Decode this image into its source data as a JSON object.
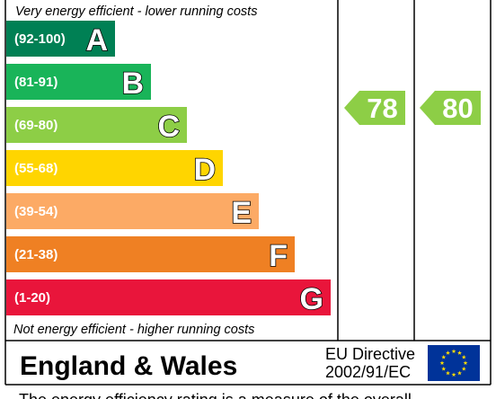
{
  "chart_data": {
    "type": "bar",
    "top_caption": "Very energy efficient - lower running costs",
    "bottom_caption": "Not energy efficient - higher running costs",
    "bands": [
      {
        "letter": "A",
        "range": "(92-100)",
        "color": "#008054"
      },
      {
        "letter": "B",
        "range": "(81-91)",
        "color": "#19b459"
      },
      {
        "letter": "C",
        "range": "(69-80)",
        "color": "#8dce46"
      },
      {
        "letter": "D",
        "range": "(55-68)",
        "color": "#ffd500"
      },
      {
        "letter": "E",
        "range": "(39-54)",
        "color": "#fcaa65"
      },
      {
        "letter": "F",
        "range": "(21-38)",
        "color": "#ef8023"
      },
      {
        "letter": "G",
        "range": "(1-20)",
        "color": "#e9153b"
      }
    ],
    "ratings": [
      {
        "value": 78,
        "band": "C",
        "color": "#8dce46"
      },
      {
        "value": 80,
        "band": "C",
        "color": "#8dce46"
      }
    ]
  },
  "footer": {
    "region": "England & Wales",
    "directive_line1": "EU Directive",
    "directive_line2": "2002/91/EC",
    "flag_color": "#003399",
    "star_color": "#ffdd00"
  },
  "footnote": "The energy efficiency rating is a measure of the overall"
}
